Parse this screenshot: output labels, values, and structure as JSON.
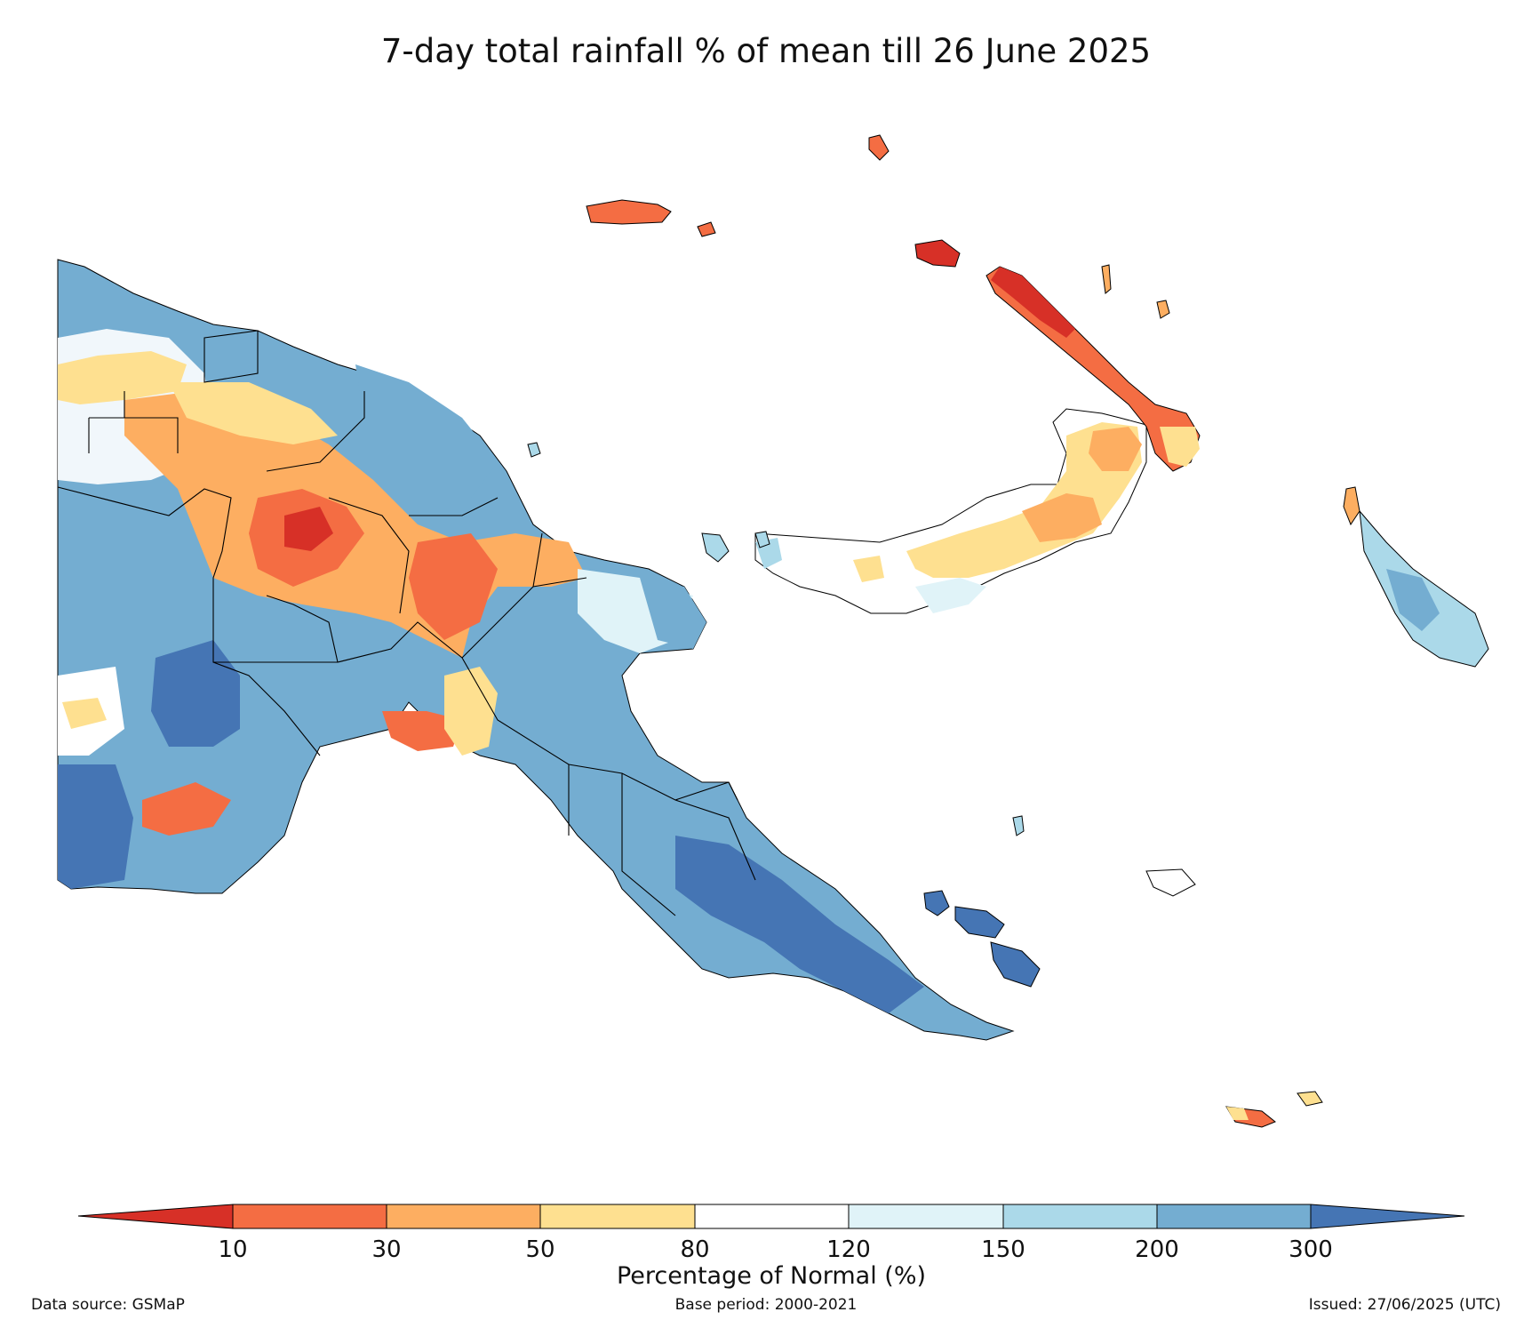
{
  "title": "7-day total rainfall % of mean till 26 June 2025",
  "colorbar": {
    "title": "Percentage of Normal (%)",
    "ticks": [
      "10",
      "30",
      "50",
      "80",
      "120",
      "150",
      "200",
      "300"
    ],
    "colors": [
      "#d73027",
      "#f46d43",
      "#fdae61",
      "#fee090",
      "#ffffff",
      "#e0f3f8",
      "#abd9e9",
      "#74add1",
      "#4575b4"
    ]
  },
  "footer": {
    "source": "Data source: GSMaP",
    "base_period": "Base period: 2000-2021",
    "issued": "Issued: 27/06/2025 (UTC)"
  }
}
